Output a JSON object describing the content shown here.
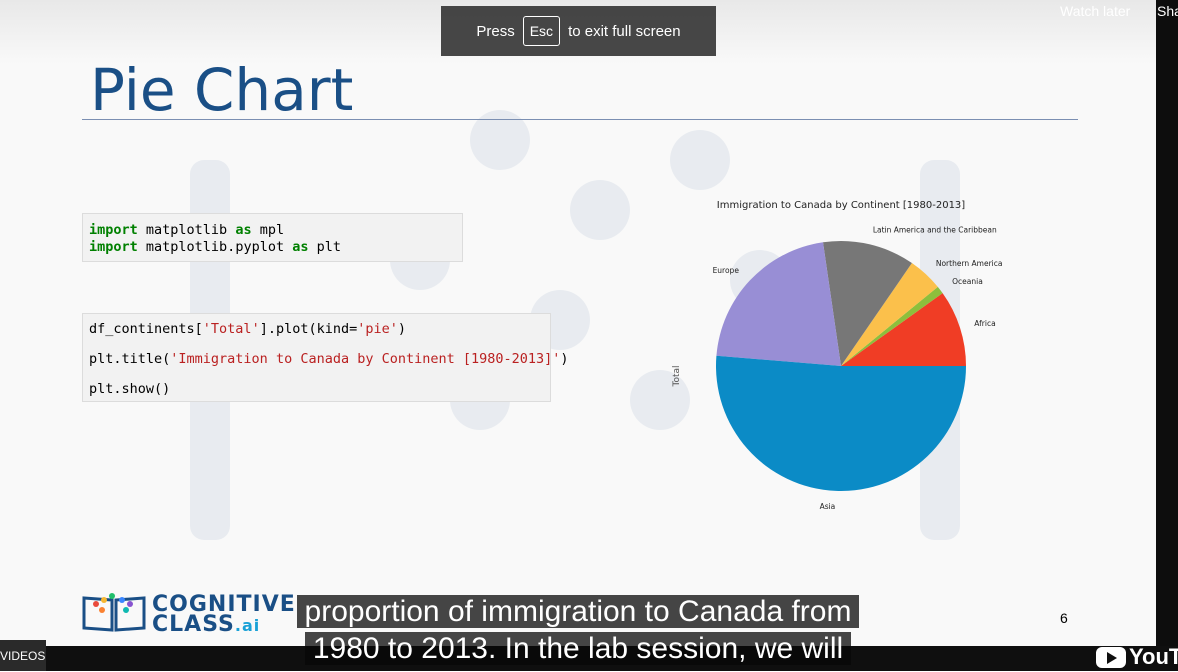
{
  "player": {
    "watch_later": "Watch later",
    "share": "Sha",
    "fullscreen_notice": {
      "press": "Press",
      "key": "Esc",
      "rest": "to exit full screen"
    },
    "videos_label": "VIDEOS",
    "youtube_label": "YouTu"
  },
  "slide": {
    "title": "Pie Chart",
    "page_number": "6",
    "code_cell_1": [
      {
        "kw": "import",
        "rest1": " matplotlib ",
        "kw2": "as",
        "rest2": " mpl"
      },
      {
        "kw": "import",
        "rest1": " matplotlib.pyplot ",
        "kw2": "as",
        "rest2": " plt"
      }
    ],
    "code_cell_2": {
      "line1_a": "df_continents[",
      "line1_s": "'Total'",
      "line1_b": "].plot(kind=",
      "line1_s2": "'pie'",
      "line1_c": ")",
      "line2_a": "plt.title(",
      "line2_s": "'Immigration to Canada by Continent [1980-2013]'",
      "line2_b": ")",
      "line3": "plt.show()"
    },
    "logo": {
      "line1": "COGNITIVE",
      "line2": "CLASS",
      "ai": ".ai"
    }
  },
  "caption": {
    "line1": "proportion of immigration to Canada from",
    "line2": "1980 to 2013. In the lab session, we will"
  },
  "chart_data": {
    "type": "pie",
    "title": "Immigration to Canada by Continent [1980-2013]",
    "ylabel": "Total",
    "slices": [
      {
        "label": "Africa",
        "value": 9.9,
        "color": "#f03d25"
      },
      {
        "label": "Oceania",
        "value": 1.0,
        "color": "#8dbf3c"
      },
      {
        "label": "Northern America",
        "value": 4.5,
        "color": "#fbc04b"
      },
      {
        "label": "Latin America and the Caribbean",
        "value": 11.9,
        "color": "#777777"
      },
      {
        "label": "Europe",
        "value": 21.4,
        "color": "#988ed5"
      },
      {
        "label": "Asia",
        "value": 51.3,
        "color": "#0b8bc6"
      }
    ]
  }
}
